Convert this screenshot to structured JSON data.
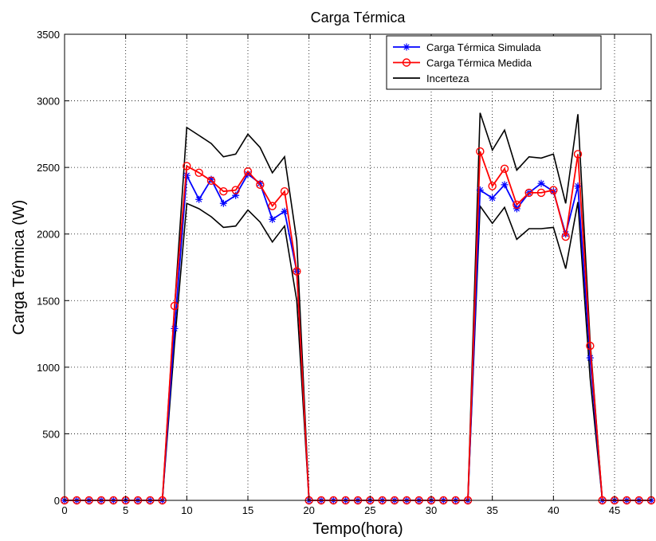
{
  "chart_data": {
    "type": "line",
    "title": "Carga Térmica",
    "xlabel": "Tempo(hora)",
    "ylabel": "Carga Térmica (W)",
    "xlim": [
      0,
      48
    ],
    "ylim": [
      0,
      3500
    ],
    "xticks": [
      0,
      5,
      10,
      15,
      20,
      25,
      30,
      35,
      40,
      45
    ],
    "yticks": [
      0,
      500,
      1000,
      1500,
      2000,
      2500,
      3000,
      3500
    ],
    "grid": true,
    "legend_position": "top-right",
    "series": [
      {
        "name": "Carga Térmica Simulada",
        "color": "#0000ff",
        "marker": "star",
        "x": [
          0,
          1,
          2,
          3,
          4,
          5,
          6,
          7,
          8,
          9,
          10,
          11,
          12,
          13,
          14,
          15,
          16,
          17,
          18,
          19,
          20,
          21,
          22,
          23,
          24,
          25,
          26,
          27,
          28,
          29,
          30,
          31,
          32,
          33,
          34,
          35,
          36,
          37,
          38,
          39,
          40,
          41,
          42,
          43,
          44,
          45,
          46,
          47,
          48
        ],
        "values": [
          0,
          0,
          0,
          0,
          0,
          0,
          0,
          0,
          0,
          1290,
          2440,
          2260,
          2410,
          2230,
          2290,
          2450,
          2380,
          2110,
          2170,
          1720,
          0,
          0,
          0,
          0,
          0,
          0,
          0,
          0,
          0,
          0,
          0,
          0,
          0,
          0,
          2330,
          2270,
          2370,
          2190,
          2310,
          2380,
          2320,
          2000,
          2360,
          1070,
          0,
          0,
          0,
          0,
          0
        ]
      },
      {
        "name": "Carga Térmica Medida",
        "color": "#ff0000",
        "marker": "circle",
        "x": [
          0,
          1,
          2,
          3,
          4,
          5,
          6,
          7,
          8,
          9,
          10,
          11,
          12,
          13,
          14,
          15,
          16,
          17,
          18,
          19,
          20,
          21,
          22,
          23,
          24,
          25,
          26,
          27,
          28,
          29,
          30,
          31,
          32,
          33,
          34,
          35,
          36,
          37,
          38,
          39,
          40,
          41,
          42,
          43,
          44,
          45,
          46,
          47,
          48
        ],
        "values": [
          0,
          0,
          0,
          0,
          0,
          0,
          0,
          0,
          0,
          1460,
          2510,
          2460,
          2400,
          2320,
          2330,
          2470,
          2370,
          2210,
          2320,
          1720,
          0,
          0,
          0,
          0,
          0,
          0,
          0,
          0,
          0,
          0,
          0,
          0,
          0,
          0,
          2620,
          2360,
          2490,
          2220,
          2310,
          2310,
          2330,
          1980,
          2600,
          1160,
          0,
          0,
          0,
          0,
          0
        ]
      },
      {
        "name": "Incerteza",
        "color": "#000000",
        "marker": "none",
        "x": [
          8,
          9,
          10,
          11,
          12,
          13,
          14,
          15,
          16,
          17,
          18,
          19,
          20
        ],
        "values": [
          0,
          1450,
          2800,
          2740,
          2680,
          2580,
          2600,
          2750,
          2650,
          2460,
          2580,
          1950,
          0
        ]
      },
      {
        "name": "",
        "color": "#000000",
        "marker": "none",
        "x": [
          8,
          9,
          10,
          11,
          12,
          13,
          14,
          15,
          16,
          17,
          18,
          19,
          20
        ],
        "values": [
          0,
          1180,
          2230,
          2190,
          2130,
          2050,
          2060,
          2180,
          2090,
          1940,
          2060,
          1500,
          0
        ]
      },
      {
        "name": "",
        "color": "#000000",
        "marker": "none",
        "x": [
          33,
          34,
          35,
          36,
          37,
          38,
          39,
          40,
          41,
          42,
          43,
          44
        ],
        "values": [
          0,
          2910,
          2630,
          2780,
          2480,
          2580,
          2570,
          2600,
          2230,
          2900,
          1200,
          0
        ]
      },
      {
        "name": "",
        "color": "#000000",
        "marker": "none",
        "x": [
          33,
          34,
          35,
          36,
          37,
          38,
          39,
          40,
          41,
          42,
          43,
          44
        ],
        "values": [
          0,
          2210,
          2080,
          2200,
          1960,
          2040,
          2040,
          2050,
          1740,
          2240,
          920,
          0
        ]
      }
    ]
  }
}
